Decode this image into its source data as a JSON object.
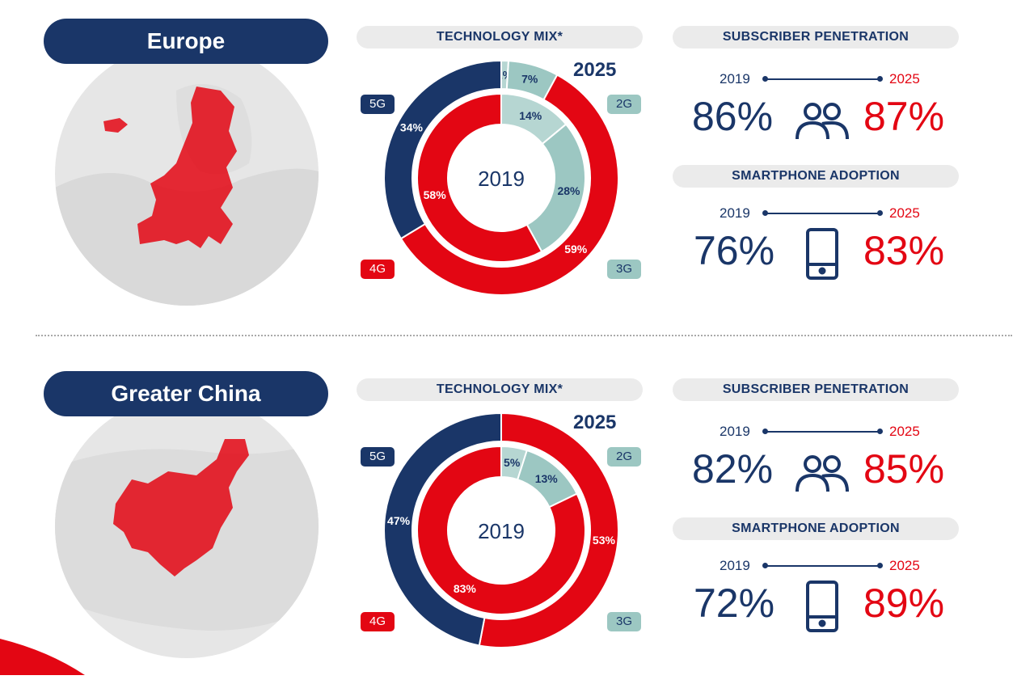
{
  "regions": [
    {
      "name": "Europe",
      "tech_mix_label": "TECHNOLOGY MIX*",
      "sub_label": "SUBSCRIBER PENETRATION",
      "smart_label": "SMARTPHONE ADOPTION",
      "year_from": "2019",
      "year_to": "2025",
      "sub_2019": "86%",
      "sub_2025": "87%",
      "smart_2019": "76%",
      "smart_2025": "83%",
      "labels_2025": {
        "g5": "34%",
        "g2": "1%",
        "g3": "7%",
        "g4": "59%"
      },
      "labels_2019": {
        "g4": "58%",
        "g2": "14%",
        "g3": "28%"
      }
    },
    {
      "name": "Greater China",
      "tech_mix_label": "TECHNOLOGY MIX*",
      "sub_label": "SUBSCRIBER PENETRATION",
      "smart_label": "SMARTPHONE ADOPTION",
      "year_from": "2019",
      "year_to": "2025",
      "sub_2019": "82%",
      "sub_2025": "85%",
      "smart_2019": "72%",
      "smart_2025": "89%",
      "labels_2025": {
        "g5": "47%",
        "g4": "53%"
      },
      "labels_2019": {
        "g4": "83%",
        "g3": "13%",
        "g2": "5%"
      }
    }
  ],
  "legend": {
    "g5": "5G",
    "g4": "4G",
    "g2": "2G",
    "g3": "3G"
  },
  "colors": {
    "navy": "#1a3668",
    "red": "#e30613",
    "teal": "#9cc7c2",
    "light_teal": "#b6d6d2"
  },
  "chart_data": [
    {
      "type": "pie",
      "title": "Europe — TECHNOLOGY MIX* 2025",
      "series": [
        {
          "name": "2025",
          "categories": [
            "5G",
            "2G",
            "3G",
            "4G"
          ],
          "values": [
            34,
            1,
            7,
            59
          ]
        }
      ]
    },
    {
      "type": "pie",
      "title": "Europe — TECHNOLOGY MIX* 2019",
      "series": [
        {
          "name": "2019",
          "categories": [
            "4G",
            "2G",
            "3G"
          ],
          "values": [
            58,
            14,
            28
          ]
        }
      ]
    },
    {
      "type": "pie",
      "title": "Greater China — TECHNOLOGY MIX* 2025",
      "series": [
        {
          "name": "2025",
          "categories": [
            "5G",
            "4G"
          ],
          "values": [
            47,
            53
          ]
        }
      ]
    },
    {
      "type": "pie",
      "title": "Greater China — TECHNOLOGY MIX* 2019",
      "series": [
        {
          "name": "2019",
          "categories": [
            "4G",
            "3G",
            "2G"
          ],
          "values": [
            83,
            13,
            5
          ]
        }
      ]
    }
  ]
}
